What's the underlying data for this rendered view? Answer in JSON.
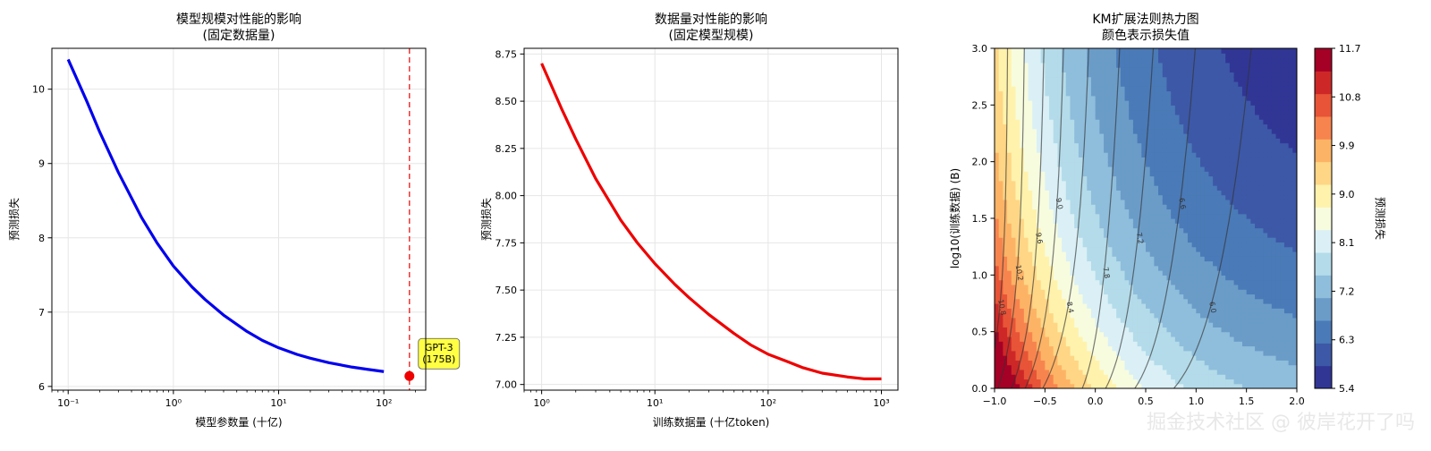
{
  "chart_data": [
    {
      "type": "line",
      "title": "模型规模对性能的影响",
      "subtitle": "(固定数据量)",
      "xlabel": "模型参数量 (十亿)",
      "ylabel": "预测损失",
      "xscale": "log",
      "xlim": [
        0.07,
        250
      ],
      "ylim": [
        5.95,
        10.55
      ],
      "xticks": [
        {
          "v": 0.1,
          "label": "10⁻¹"
        },
        {
          "v": 1,
          "label": "10⁰"
        },
        {
          "v": 10,
          "label": "10¹"
        },
        {
          "v": 100,
          "label": "10²"
        }
      ],
      "yticks": [
        6,
        7,
        8,
        9,
        10
      ],
      "grid": true,
      "series": [
        {
          "color": "#0000ee",
          "x": [
            0.1,
            0.15,
            0.2,
            0.3,
            0.5,
            0.7,
            1,
            1.5,
            2,
            3,
            5,
            7,
            10,
            15,
            20,
            30,
            50,
            70,
            100
          ],
          "y": [
            10.4,
            9.84,
            9.42,
            8.88,
            8.27,
            7.93,
            7.62,
            7.34,
            7.17,
            6.96,
            6.74,
            6.62,
            6.52,
            6.43,
            6.38,
            6.32,
            6.26,
            6.23,
            6.2
          ]
        }
      ],
      "marker": {
        "x": 175,
        "y": 6.14,
        "label": "GPT-3\n(175B)",
        "color": "#ee0000"
      },
      "vline": {
        "x": 175,
        "color": "#ee0000",
        "style": "dashed"
      }
    },
    {
      "type": "line",
      "title": "数据量对性能的影响",
      "subtitle": "(固定模型规模)",
      "xlabel": "训练数据量 (十亿token)",
      "ylabel": "预测损失",
      "xscale": "log",
      "xlim": [
        0.7,
        1400
      ],
      "ylim": [
        6.97,
        8.78
      ],
      "xticks": [
        {
          "v": 1,
          "label": "10⁰"
        },
        {
          "v": 10,
          "label": "10¹"
        },
        {
          "v": 100,
          "label": "10²"
        },
        {
          "v": 1000,
          "label": "10³"
        }
      ],
      "yticks": [
        7.0,
        7.25,
        7.5,
        7.75,
        8.0,
        8.25,
        8.5,
        8.75
      ],
      "grid": true,
      "series": [
        {
          "color": "#ee0000",
          "x": [
            1,
            1.5,
            2,
            3,
            5,
            7,
            10,
            15,
            20,
            30,
            50,
            70,
            100,
            150,
            200,
            300,
            500,
            700,
            1000
          ],
          "y": [
            8.7,
            8.46,
            8.3,
            8.09,
            7.87,
            7.75,
            7.64,
            7.53,
            7.46,
            7.37,
            7.27,
            7.21,
            7.16,
            7.12,
            7.09,
            7.06,
            7.04,
            7.03,
            7.03
          ]
        }
      ]
    },
    {
      "type": "heatmap",
      "title": "KM扩展法则热力图",
      "subtitle": "颜色表示损失值",
      "ylabel": "log10(训练数据) (B)",
      "xlabel": "",
      "xlim": [
        -1.0,
        2.0
      ],
      "ylim": [
        0.0,
        3.0
      ],
      "xticks": [
        -1.0,
        -0.5,
        0.0,
        0.5,
        1.0,
        1.5,
        2.0
      ],
      "yticks": [
        0.0,
        0.5,
        1.0,
        1.5,
        2.0,
        2.5,
        3.0
      ],
      "colorbar": {
        "label": "预测损失",
        "min": 5.4,
        "max": 11.7,
        "ticks": [
          5.4,
          6.3,
          7.2,
          8.1,
          9.0,
          9.9,
          10.8,
          11.7
        ]
      },
      "contour_labels": [
        "6.0",
        "6.6",
        "7.2",
        "7.8",
        "8.4",
        "9.0",
        "9.6",
        "10.2",
        "10.8"
      ],
      "palette": [
        "#313695",
        "#3d58a7",
        "#4a7ab7",
        "#6b9cc8",
        "#8fbedc",
        "#b4dbe9",
        "#daf0f6",
        "#f7fcdf",
        "#fff2ac",
        "#fed686",
        "#fdb365",
        "#f7844e",
        "#e75437",
        "#cd2827",
        "#a50026"
      ]
    }
  ],
  "watermark": "掘金技术社区 @ 彼岸花开了吗"
}
